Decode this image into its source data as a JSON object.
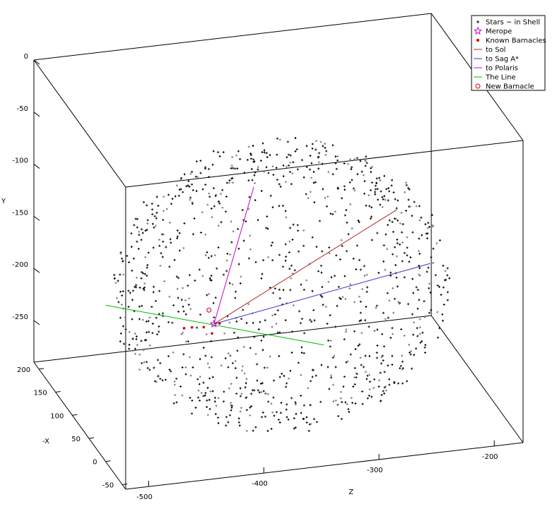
{
  "chart_data": {
    "type": "scatter",
    "view": "3d",
    "xlabel": "-X",
    "ylabel": "Y",
    "zlabel": "Z",
    "xlim": [
      -60,
      215
    ],
    "ylim": [
      -290,
      0
    ],
    "zlim": [
      -520,
      -175
    ],
    "x_ticks": [
      "-50",
      "0",
      "50",
      "100",
      "150",
      "200"
    ],
    "y_ticks": [
      "0",
      "-50",
      "-100",
      "-150",
      "-200",
      "-250"
    ],
    "z_ticks": [
      "-500",
      "-400",
      "-300",
      "-200"
    ],
    "legend_position": "top-right",
    "grid": false,
    "legend": [
      {
        "label": "Stars ~ in Shell",
        "marker": "plus",
        "color": "#000000"
      },
      {
        "label": "Merope",
        "marker": "star",
        "color": "#cc00cc"
      },
      {
        "label": "Known Barnacles",
        "marker": "dot",
        "color": "#cc0000"
      },
      {
        "label": "to Sol",
        "marker": "line",
        "color": "#b22222"
      },
      {
        "label": "to Sag A*",
        "marker": "line",
        "color": "#3333cc"
      },
      {
        "label": "to Polaris",
        "marker": "line",
        "color": "#cc00cc"
      },
      {
        "label": "The Line",
        "marker": "line",
        "color": "#00bb00"
      },
      {
        "label": "New Barnacle",
        "marker": "circle",
        "color": "#cc0000"
      }
    ],
    "shell_center": {
      "x": 80,
      "y": -180,
      "z": -345
    },
    "shell_radius": 125,
    "star_count": 1100,
    "merope": {
      "x": 62,
      "y": -200,
      "z": -408
    },
    "new_barnacle": {
      "x": 70,
      "y": -190,
      "z": -410
    },
    "known_barnacles": [
      {
        "x": 58,
        "y": -200,
        "z": -418
      },
      {
        "x": 66,
        "y": -202,
        "z": -402
      },
      {
        "x": 54,
        "y": -205,
        "z": -412
      },
      {
        "x": 52,
        "y": -196,
        "z": -430
      },
      {
        "x": 48,
        "y": -194,
        "z": -438
      }
    ],
    "lines": [
      {
        "name": "to Sol",
        "from": {
          "x": 62,
          "y": -200,
          "z": -408
        },
        "to": {
          "x": 60,
          "y": -110,
          "z": -250
        }
      },
      {
        "name": "to Sag A*",
        "from": {
          "x": 62,
          "y": -200,
          "z": -408
        },
        "to": {
          "x": 80,
          "y": -175,
          "z": -215
        }
      },
      {
        "name": "to Polaris",
        "from": {
          "x": 62,
          "y": -200,
          "z": -408
        },
        "to": {
          "x": 160,
          "y": -120,
          "z": -345
        }
      },
      {
        "name": "The Line",
        "from": {
          "x": 0,
          "y": -140,
          "z": -520
        },
        "to": {
          "x": 140,
          "y": -270,
          "z": -290
        }
      }
    ]
  }
}
